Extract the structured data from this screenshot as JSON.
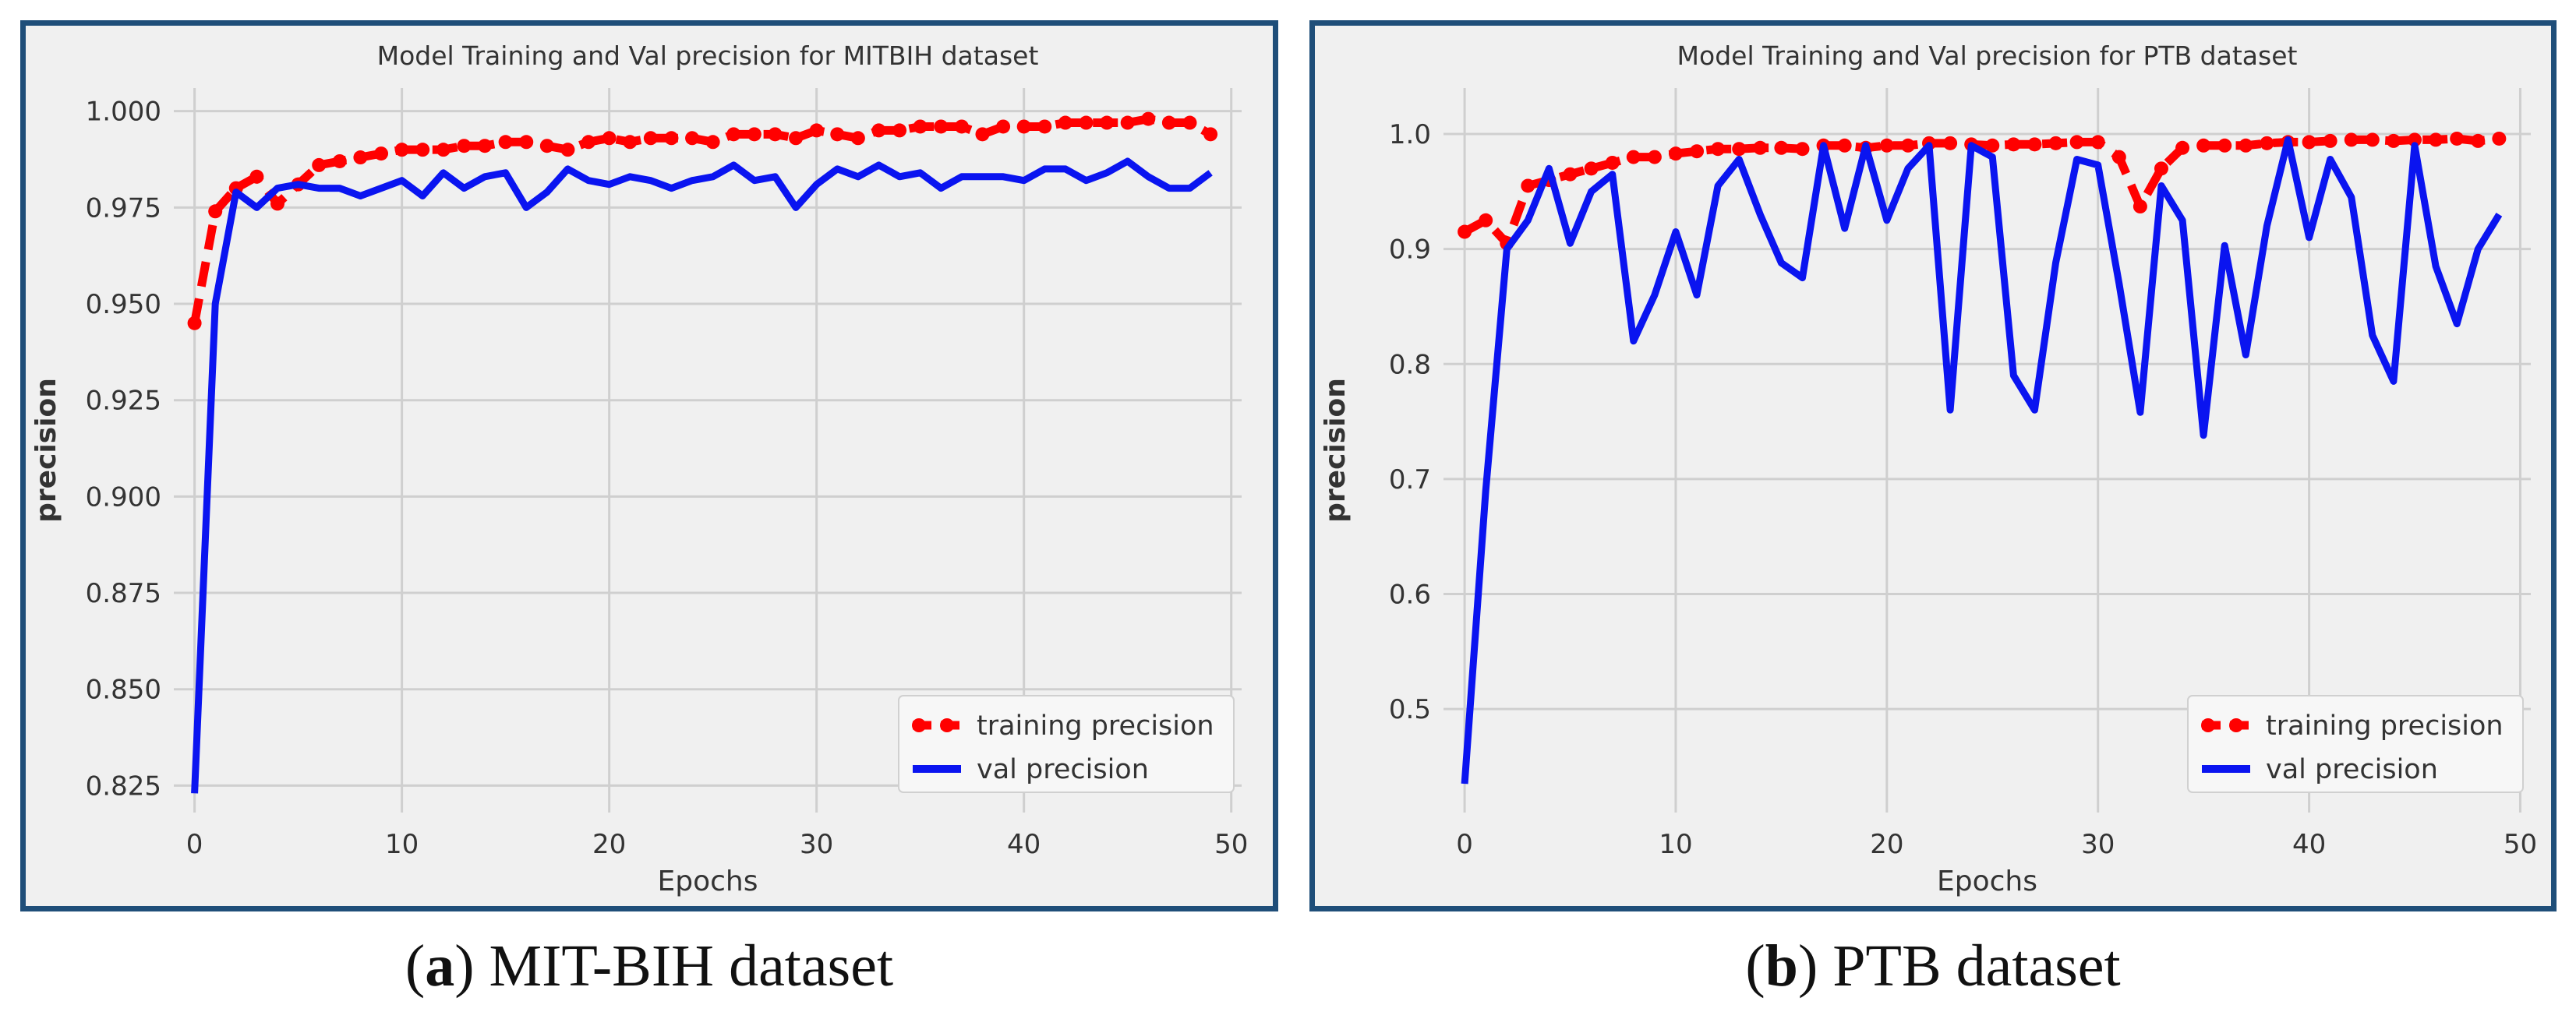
{
  "captions": [
    {
      "letter": "a",
      "text": ") MIT-BIH dataset"
    },
    {
      "letter": "b",
      "text": ") PTB dataset"
    }
  ],
  "colors": {
    "training": "#ff0000",
    "val": "#0a14f0",
    "grid": "#cfcfcf",
    "plot_bg": "#f0f0f0",
    "frame": "#1f4e79"
  },
  "chart_data": [
    {
      "type": "line",
      "title": "Model Training and Val precision for MITBIH dataset",
      "xlabel": "Epochs",
      "ylabel": "precision",
      "xlim": [
        -1,
        50.5
      ],
      "ylim": [
        0.818,
        1.006
      ],
      "xticks": [
        0,
        10,
        20,
        30,
        40,
        50
      ],
      "yticks": [
        0.825,
        0.85,
        0.875,
        0.9,
        0.925,
        0.95,
        0.975,
        1.0
      ],
      "ytick_labels": [
        "0.825",
        "0.850",
        "0.875",
        "0.900",
        "0.925",
        "0.950",
        "0.975",
        "1.000"
      ],
      "grid": true,
      "legend": "lower-right",
      "x": [
        0,
        1,
        2,
        3,
        4,
        5,
        6,
        7,
        8,
        9,
        10,
        11,
        12,
        13,
        14,
        15,
        16,
        17,
        18,
        19,
        20,
        21,
        22,
        23,
        24,
        25,
        26,
        27,
        28,
        29,
        30,
        31,
        32,
        33,
        34,
        35,
        36,
        37,
        38,
        39,
        40,
        41,
        42,
        43,
        44,
        45,
        46,
        47,
        48,
        49
      ],
      "series": [
        {
          "name": "training precision",
          "style": "dashed-dot",
          "values": [
            0.945,
            0.974,
            0.98,
            0.983,
            0.976,
            0.981,
            0.986,
            0.987,
            0.988,
            0.989,
            0.99,
            0.99,
            0.99,
            0.991,
            0.991,
            0.992,
            0.992,
            0.991,
            0.99,
            0.992,
            0.993,
            0.992,
            0.993,
            0.993,
            0.993,
            0.992,
            0.994,
            0.994,
            0.994,
            0.993,
            0.995,
            0.994,
            0.993,
            0.995,
            0.995,
            0.996,
            0.996,
            0.996,
            0.994,
            0.996,
            0.996,
            0.996,
            0.997,
            0.997,
            0.997,
            0.997,
            0.998,
            0.997,
            0.997,
            0.994
          ]
        },
        {
          "name": "val precision",
          "style": "solid",
          "values": [
            0.823,
            0.95,
            0.979,
            0.975,
            0.98,
            0.981,
            0.98,
            0.98,
            0.978,
            0.98,
            0.982,
            0.978,
            0.984,
            0.98,
            0.983,
            0.984,
            0.975,
            0.979,
            0.985,
            0.982,
            0.981,
            0.983,
            0.982,
            0.98,
            0.982,
            0.983,
            0.986,
            0.982,
            0.983,
            0.975,
            0.981,
            0.985,
            0.983,
            0.986,
            0.983,
            0.984,
            0.98,
            0.983,
            0.983,
            0.983,
            0.982,
            0.985,
            0.985,
            0.982,
            0.984,
            0.987,
            0.983,
            0.98,
            0.98,
            0.984
          ]
        }
      ]
    },
    {
      "type": "line",
      "title": "Model Training and Val precision for PTB dataset",
      "xlabel": "Epochs",
      "ylabel": "precision",
      "xlim": [
        -1,
        50.5
      ],
      "ylim": [
        0.41,
        1.04
      ],
      "xticks": [
        0,
        10,
        20,
        30,
        40,
        50
      ],
      "yticks": [
        0.5,
        0.6,
        0.7,
        0.8,
        0.9,
        1.0
      ],
      "ytick_labels": [
        "0.5",
        "0.6",
        "0.7",
        "0.8",
        "0.9",
        "1.0"
      ],
      "grid": true,
      "legend": "lower-right",
      "x": [
        0,
        1,
        2,
        3,
        4,
        5,
        6,
        7,
        8,
        9,
        10,
        11,
        12,
        13,
        14,
        15,
        16,
        17,
        18,
        19,
        20,
        21,
        22,
        23,
        24,
        25,
        26,
        27,
        28,
        29,
        30,
        31,
        32,
        33,
        34,
        35,
        36,
        37,
        38,
        39,
        40,
        41,
        42,
        43,
        44,
        45,
        46,
        47,
        48,
        49
      ],
      "series": [
        {
          "name": "training precision",
          "style": "dashed-dot",
          "values": [
            0.915,
            0.925,
            0.905,
            0.955,
            0.96,
            0.965,
            0.97,
            0.975,
            0.98,
            0.98,
            0.983,
            0.985,
            0.987,
            0.987,
            0.988,
            0.988,
            0.987,
            0.99,
            0.99,
            0.988,
            0.99,
            0.99,
            0.992,
            0.992,
            0.991,
            0.99,
            0.991,
            0.991,
            0.992,
            0.993,
            0.993,
            0.98,
            0.937,
            0.97,
            0.988,
            0.99,
            0.99,
            0.99,
            0.992,
            0.993,
            0.993,
            0.994,
            0.995,
            0.995,
            0.994,
            0.995,
            0.995,
            0.996,
            0.994,
            0.996
          ]
        },
        {
          "name": "val precision",
          "style": "solid",
          "values": [
            0.435,
            0.69,
            0.9,
            0.925,
            0.97,
            0.905,
            0.95,
            0.965,
            0.82,
            0.86,
            0.915,
            0.86,
            0.955,
            0.978,
            0.93,
            0.888,
            0.875,
            0.99,
            0.918,
            0.99,
            0.925,
            0.97,
            0.99,
            0.76,
            0.99,
            0.98,
            0.79,
            0.76,
            0.888,
            0.978,
            0.973,
            0.87,
            0.758,
            0.955,
            0.925,
            0.738,
            0.903,
            0.808,
            0.92,
            0.995,
            0.91,
            0.978,
            0.945,
            0.825,
            0.785,
            0.99,
            0.885,
            0.835,
            0.9,
            0.93
          ]
        }
      ]
    }
  ]
}
